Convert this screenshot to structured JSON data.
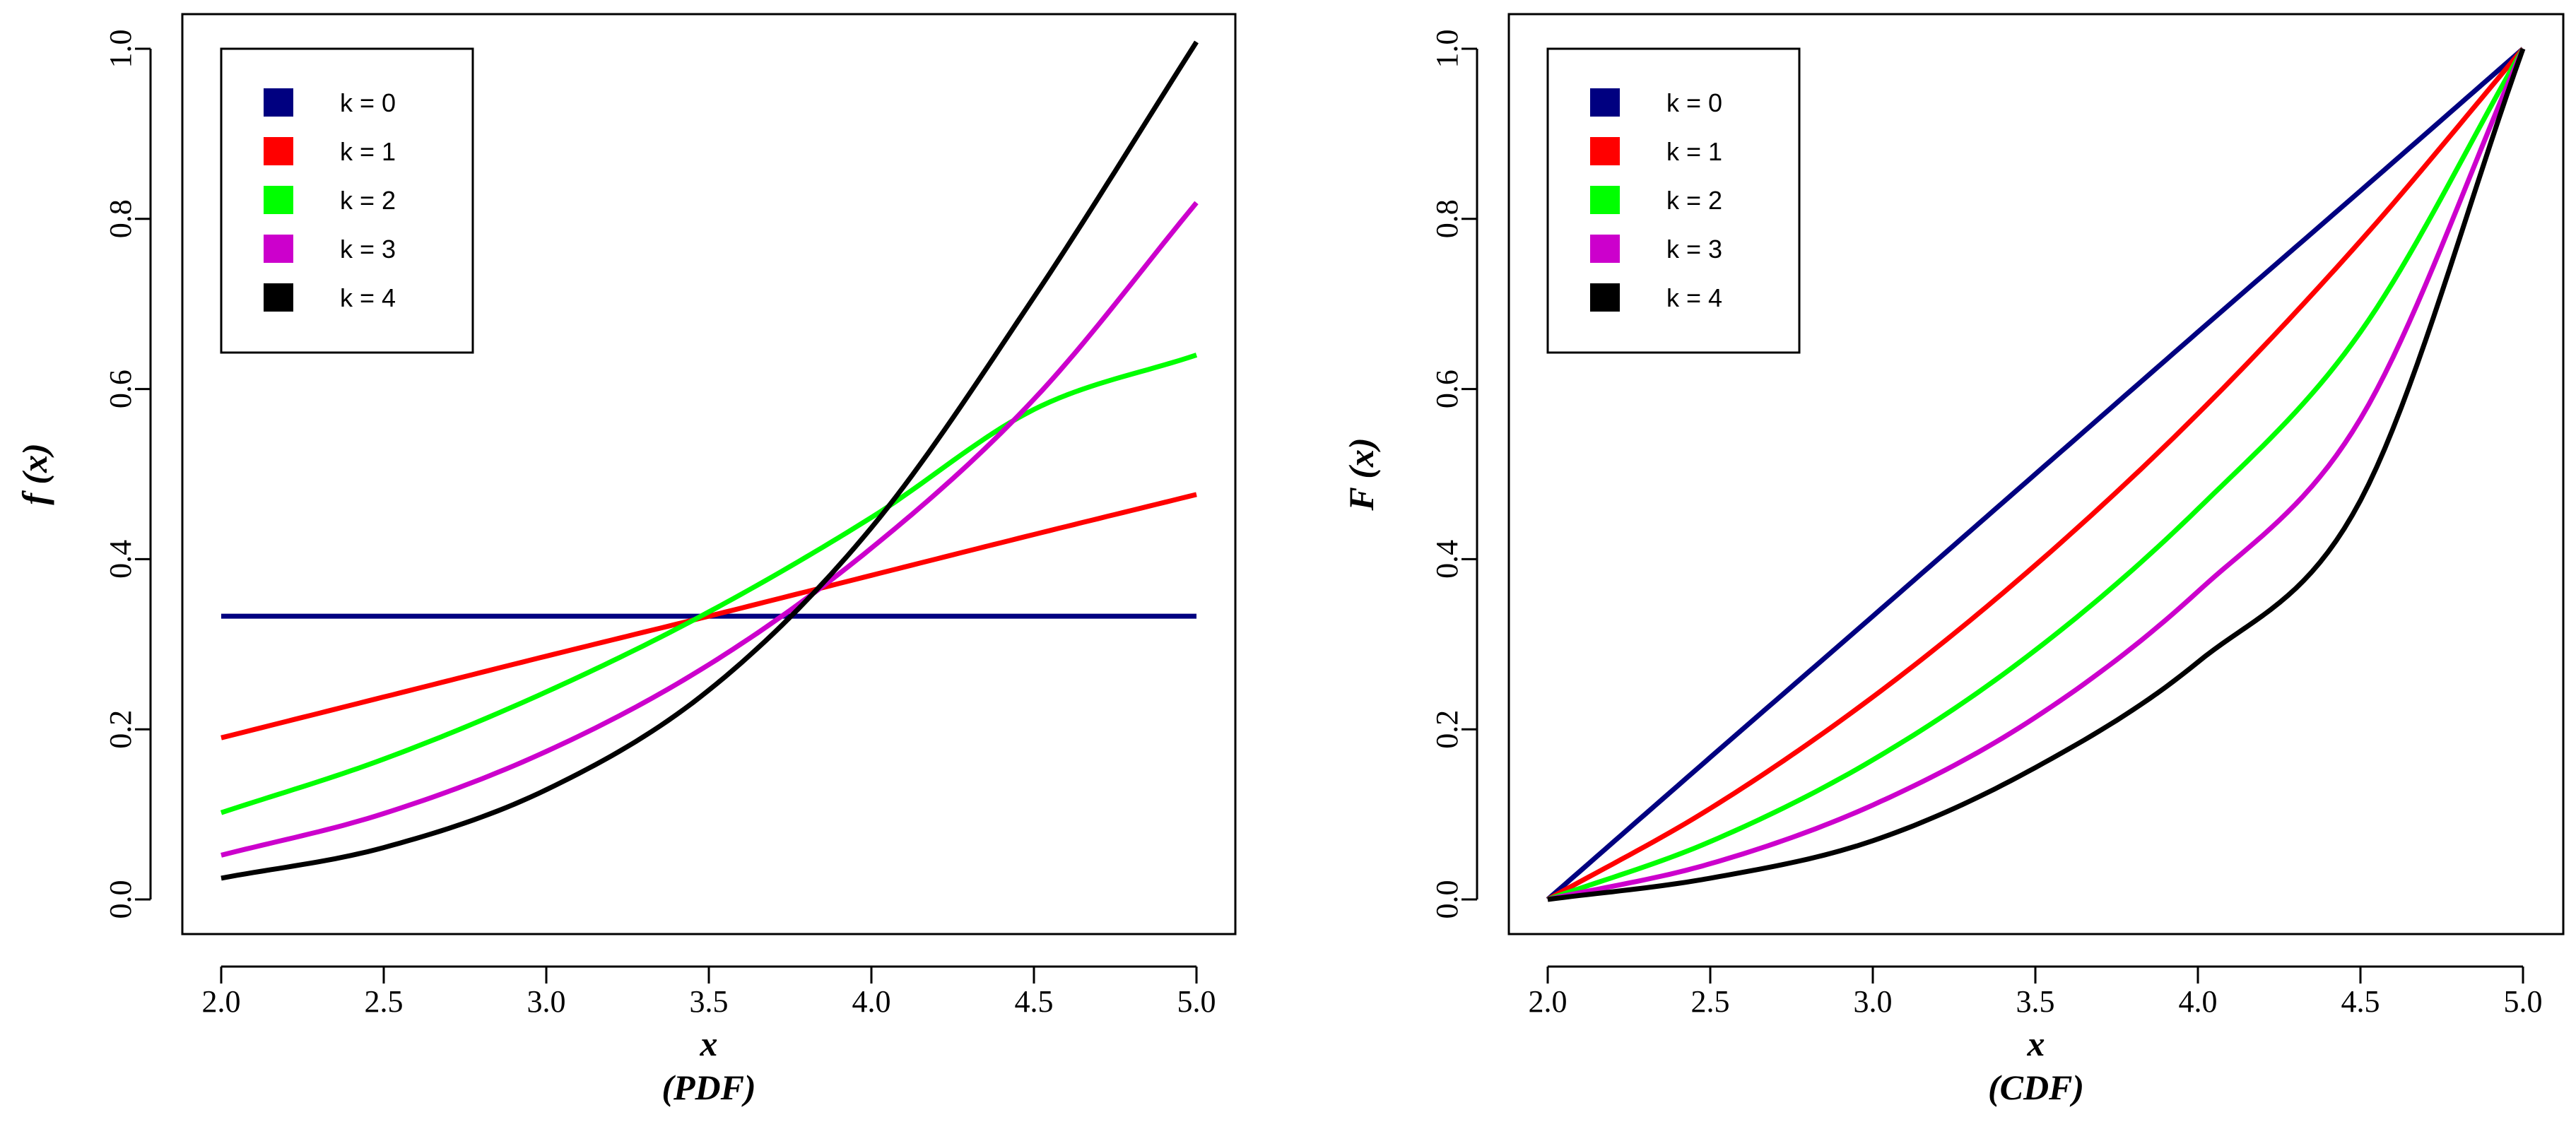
{
  "chart_data": [
    {
      "type": "line",
      "xlabel": "x",
      "subtitle": "(PDF)",
      "ylabel": "f (x)",
      "xlim": [
        2.0,
        5.0
      ],
      "ylim": [
        0.0,
        1.0
      ],
      "xticks": [
        "2.0",
        "2.5",
        "3.0",
        "3.5",
        "4.0",
        "4.5",
        "5.0"
      ],
      "yticks": [
        "0.0",
        "0.2",
        "0.4",
        "0.6",
        "0.8",
        "1.0"
      ],
      "legend": {
        "position": "top-left",
        "entries": [
          "k = 0",
          "k = 1",
          "k = 2",
          "k = 3",
          "k = 4"
        ]
      },
      "x": [
        2.0,
        2.5,
        3.0,
        3.5,
        4.0,
        4.5,
        5.0
      ],
      "series": [
        {
          "name": "k = 0",
          "color": "#000080",
          "values": [
            0.333,
            0.333,
            0.333,
            0.333,
            0.333,
            0.333,
            0.333
          ]
        },
        {
          "name": "k = 1",
          "color": "#ff0000",
          "values": [
            0.19,
            0.238,
            0.286,
            0.333,
            0.381,
            0.429,
            0.476
          ]
        },
        {
          "name": "k = 2",
          "color": "#00ff00",
          "values": [
            0.102,
            0.165,
            0.244,
            0.338,
            0.449,
            0.576,
            0.64
          ]
        },
        {
          "name": "k = 3",
          "color": "#cc00cc",
          "values": [
            0.052,
            0.101,
            0.174,
            0.276,
            0.413,
            0.588,
            0.819
          ]
        },
        {
          "name": "k = 4",
          "color": "#000000",
          "values": [
            0.025,
            0.061,
            0.129,
            0.246,
            0.437,
            0.708,
            1.008
          ]
        }
      ]
    },
    {
      "type": "line",
      "xlabel": "x",
      "subtitle": "(CDF)",
      "ylabel": "F (x)",
      "xlim": [
        2.0,
        5.0
      ],
      "ylim": [
        0.0,
        1.0
      ],
      "xticks": [
        "2.0",
        "2.5",
        "3.0",
        "3.5",
        "4.0",
        "4.5",
        "5.0"
      ],
      "yticks": [
        "0.0",
        "0.2",
        "0.4",
        "0.6",
        "0.8",
        "1.0"
      ],
      "legend": {
        "position": "top-left",
        "entries": [
          "k = 0",
          "k = 1",
          "k = 2",
          "k = 3",
          "k = 4"
        ]
      },
      "x": [
        2.0,
        2.5,
        3.0,
        3.5,
        4.0,
        4.5,
        5.0
      ],
      "series": [
        {
          "name": "k = 0",
          "color": "#000080",
          "values": [
            0.0,
            0.167,
            0.333,
            0.5,
            0.667,
            0.833,
            1.0
          ]
        },
        {
          "name": "k = 1",
          "color": "#ff0000",
          "values": [
            0.0,
            0.107,
            0.238,
            0.393,
            0.571,
            0.774,
            1.0
          ]
        },
        {
          "name": "k = 2",
          "color": "#00ff00",
          "values": [
            0.0,
            0.068,
            0.164,
            0.293,
            0.459,
            0.667,
            1.0
          ]
        },
        {
          "name": "k = 3",
          "color": "#cc00cc",
          "values": [
            0.0,
            0.042,
            0.111,
            0.214,
            0.362,
            0.565,
            1.0
          ]
        },
        {
          "name": "k = 4",
          "color": "#000000",
          "values": [
            0.0,
            0.025,
            0.069,
            0.155,
            0.279,
            0.469,
            1.0
          ]
        }
      ]
    }
  ]
}
